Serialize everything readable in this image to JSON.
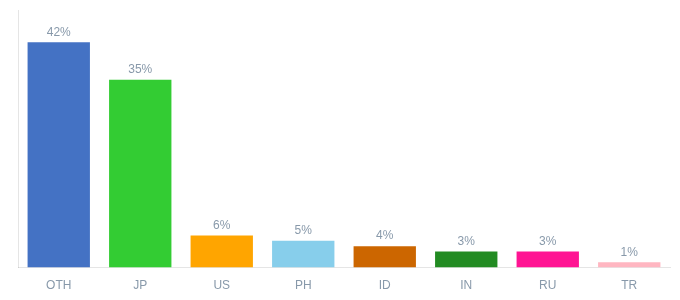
{
  "chart_data": {
    "type": "bar",
    "categories": [
      "OTH",
      "JP",
      "US",
      "PH",
      "ID",
      "IN",
      "RU",
      "TR"
    ],
    "values": [
      42,
      35,
      6,
      5,
      4,
      3,
      3,
      1
    ],
    "value_labels": [
      "42%",
      "35%",
      "6%",
      "5%",
      "4%",
      "3%",
      "3%",
      "1%"
    ],
    "colors": [
      "#4472C4",
      "#33CC33",
      "#FFA500",
      "#87CEEB",
      "#CC6600",
      "#228B22",
      "#FF1493",
      "#FFB6C1"
    ],
    "ylim": [
      0,
      48
    ],
    "grid": false,
    "data_labels": true,
    "tick_labels": "x"
  }
}
